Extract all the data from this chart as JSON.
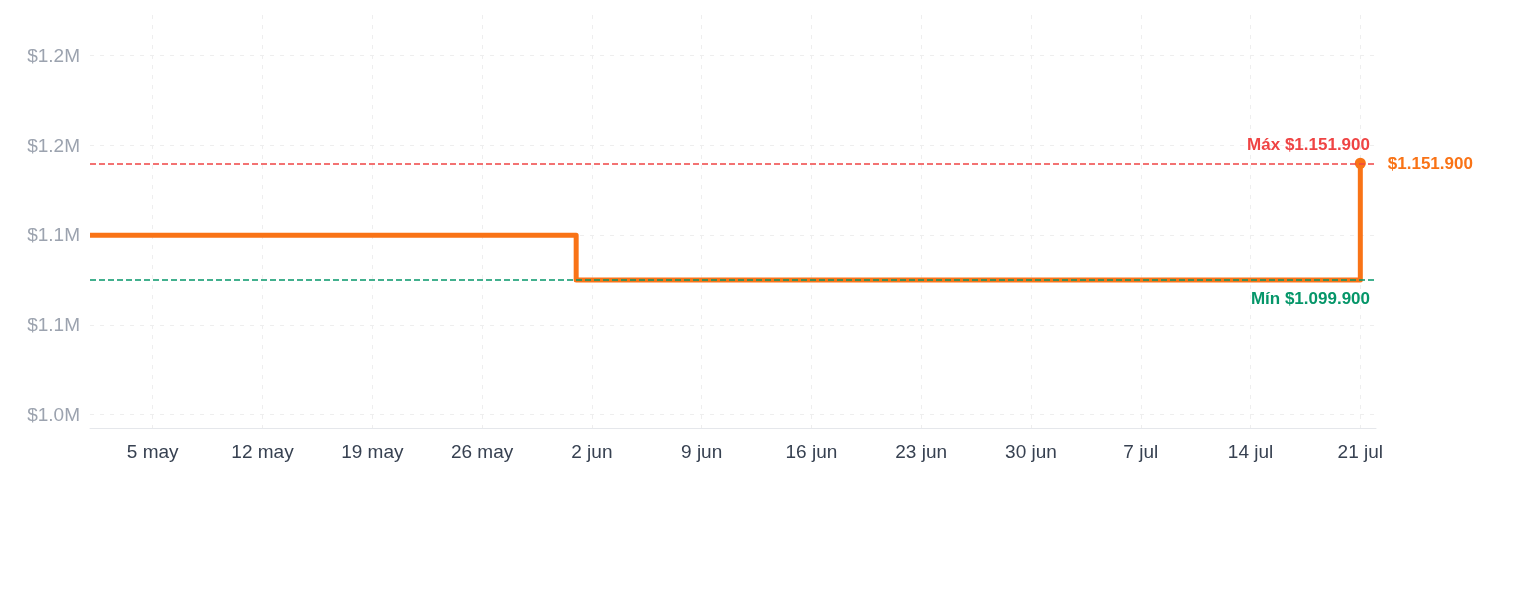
{
  "chart_data": {
    "type": "step",
    "x": [
      "--05-01",
      "--06-01",
      "--07-21"
    ],
    "series": [
      {
        "color": "#f97316",
        "values": [
          1119900,
          1099900,
          1151900
        ],
        "value_labels": [
          null,
          null,
          "$1.151.900"
        ]
      }
    ],
    "xlim": [
      "--05-01",
      "--07-22"
    ],
    "xticks": [
      {
        "value": "--05-05",
        "label": "5 may"
      },
      {
        "value": "--05-12",
        "label": "12 may"
      },
      {
        "value": "--05-19",
        "label": "19 may"
      },
      {
        "value": "--05-26",
        "label": "26 may"
      },
      {
        "value": "--06-02",
        "label": "2 jun"
      },
      {
        "value": "--06-09",
        "label": "9 jun"
      },
      {
        "value": "--06-16",
        "label": "16 jun"
      },
      {
        "value": "--06-23",
        "label": "23 jun"
      },
      {
        "value": "--06-30",
        "label": "30 jun"
      },
      {
        "value": "--07-07",
        "label": "7 jul"
      },
      {
        "value": "--07-14",
        "label": "14 jul"
      },
      {
        "value": "--07-21",
        "label": "21 jul"
      }
    ],
    "ylim": [
      1034000,
      1218000
    ],
    "yticks": [
      {
        "value": 1040000,
        "label": "$1.0M"
      },
      {
        "value": 1080000,
        "label": "$1.1M"
      },
      {
        "value": 1120000,
        "label": "$1.1M"
      },
      {
        "value": 1160000,
        "label": "$1.2M"
      },
      {
        "value": 1200000,
        "label": "$1.2M"
      }
    ],
    "ref_lines": [
      {
        "axis": "y",
        "value": 1151900,
        "label": "Máx $1.151.900",
        "color": "#ef4444",
        "line_style": "dashed"
      },
      {
        "axis": "y",
        "value": 1099900,
        "label": "Mín $1.099.900",
        "color": "#059669",
        "line_style": "dashed"
      }
    ],
    "grid": true,
    "line_style": "solid",
    "marker": "none"
  }
}
